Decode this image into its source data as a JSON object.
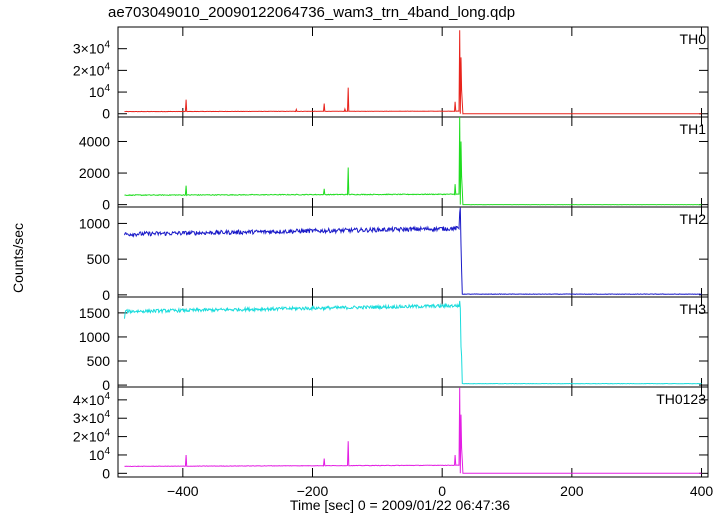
{
  "title": "ae703049010_20090122064736_wam3_trn_4band_long.qdp",
  "ylabel": "Counts/sec",
  "xlabel": "Time [sec] 0 = 2009/01/22 06:47:36",
  "chart_data": {
    "type": "line",
    "title": "ae703049010_20090122064736_wam3_trn_4band_long.qdp",
    "xlabel": "Time [sec] 0 = 2009/01/22 06:47:36",
    "ylabel": "Counts/sec",
    "xlim": [
      -500,
      410
    ],
    "xticks": [
      -400,
      -200,
      0,
      200,
      400
    ],
    "xtick_labels": [
      "−400",
      "−200",
      "0",
      "200",
      "400"
    ],
    "panels": [
      {
        "name": "TH0",
        "color": "#e8231c",
        "ylim": [
          -1500,
          40000
        ],
        "yticks": [
          0,
          10000,
          20000,
          30000
        ],
        "ytick_labels": [
          [
            "0",
            ""
          ],
          [
            "10",
            "4"
          ],
          [
            "2×10",
            "4"
          ],
          [
            "3×10",
            "4"
          ]
        ],
        "baseline": 1000,
        "noise": 60,
        "drift": 200,
        "burst_after": 1500,
        "burst_floor": 0,
        "spikes": [
          [
            -395,
            6500
          ],
          [
            -225,
            2000
          ],
          [
            -182,
            4700
          ],
          [
            -150,
            2200
          ],
          [
            -145,
            12000
          ],
          [
            20,
            5500
          ],
          [
            27,
            38500
          ],
          [
            29,
            26000
          ],
          [
            30,
            11000
          ],
          [
            31,
            5000
          ]
        ],
        "data_to": 400
      },
      {
        "name": "TH1",
        "color": "#1fdc1f",
        "ylim": [
          -150,
          5550
        ],
        "yticks": [
          0,
          2000,
          4000
        ],
        "ytick_labels": [
          [
            "0",
            ""
          ],
          [
            "2000",
            ""
          ],
          [
            "4000",
            ""
          ]
        ],
        "baseline": 600,
        "noise": 25,
        "drift": 60,
        "burst_after": 150,
        "burst_floor": 0,
        "spikes": [
          [
            -395,
            1200
          ],
          [
            -182,
            1000
          ],
          [
            -145,
            2350
          ],
          [
            20,
            1300
          ],
          [
            27,
            5550
          ],
          [
            29,
            4000
          ],
          [
            30,
            1800
          ],
          [
            31,
            900
          ]
        ],
        "data_to": 400
      },
      {
        "name": "TH2",
        "color": "#1a1ac8",
        "ylim": [
          -30,
          1230
        ],
        "yticks": [
          0,
          500,
          1000
        ],
        "ytick_labels": [
          [
            "0",
            ""
          ],
          [
            "500",
            ""
          ],
          [
            "1000",
            ""
          ]
        ],
        "baseline": 850,
        "noise": 30,
        "drift": 80,
        "burst_after": 0,
        "burst_floor": 10,
        "spikes": [
          [
            27,
            1150
          ],
          [
            28,
            1220
          ],
          [
            29,
            700
          ],
          [
            30,
            350
          ]
        ],
        "data_to": 400
      },
      {
        "name": "TH3",
        "color": "#19dcdc",
        "ylim": [
          -40,
          1830
        ],
        "yticks": [
          0,
          500,
          1000,
          1500
        ],
        "ytick_labels": [
          [
            "0",
            ""
          ],
          [
            "500",
            ""
          ],
          [
            "1000",
            ""
          ],
          [
            "1500",
            ""
          ]
        ],
        "baseline": 1530,
        "noise": 35,
        "drift": 120,
        "burst_after": 0,
        "burst_floor": 30,
        "spikes": [
          [
            -490,
            1380
          ],
          [
            27,
            1750
          ],
          [
            28,
            1600
          ],
          [
            29,
            800
          ],
          [
            30,
            600
          ]
        ],
        "data_to": 400
      },
      {
        "name": "TH0123",
        "color": "#e31ee3",
        "ylim": [
          -2000,
          47000
        ],
        "yticks": [
          0,
          10000,
          20000,
          30000,
          40000
        ],
        "ytick_labels": [
          [
            "0",
            ""
          ],
          [
            "10",
            "4"
          ],
          [
            "2×10",
            "4"
          ],
          [
            "3×10",
            "4"
          ],
          [
            "4×10",
            "4"
          ]
        ],
        "baseline": 3800,
        "noise": 120,
        "drift": 600,
        "burst_after": 1700,
        "burst_floor": 0,
        "spikes": [
          [
            -395,
            10000
          ],
          [
            -182,
            8000
          ],
          [
            -145,
            17500
          ],
          [
            20,
            10000
          ],
          [
            27,
            46500
          ],
          [
            29,
            32000
          ],
          [
            30,
            14000
          ],
          [
            31,
            7000
          ]
        ],
        "data_to": 400
      }
    ]
  }
}
